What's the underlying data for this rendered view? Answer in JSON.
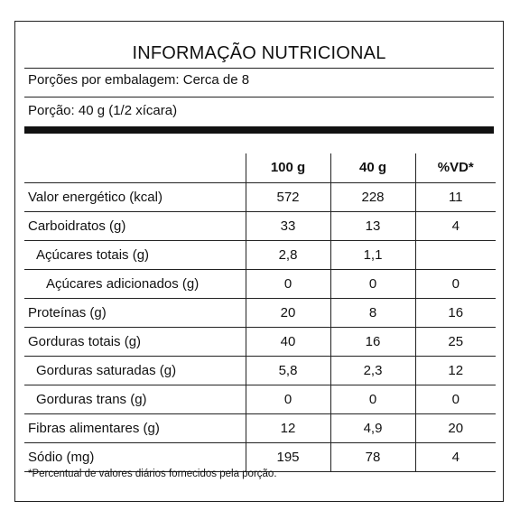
{
  "title": "INFORMAÇÃO NUTRICIONAL",
  "servings_per_package": "Porções por embalagem: Cerca de 8",
  "serving_size": "Porção: 40 g (1/2 xícara)",
  "columns": [
    "",
    "100 g",
    "40 g",
    "%VD*"
  ],
  "rows": [
    {
      "name": "Valor energético (kcal)",
      "indent": 0,
      "per100": "572",
      "per_portion": "228",
      "vd": "11"
    },
    {
      "name": "Carboidratos (g)",
      "indent": 0,
      "per100": "33",
      "per_portion": "13",
      "vd": "4"
    },
    {
      "name": "Açúcares totais (g)",
      "indent": 1,
      "per100": "2,8",
      "per_portion": "1,1",
      "vd": ""
    },
    {
      "name": "Açúcares adicionados (g)",
      "indent": 2,
      "per100": "0",
      "per_portion": "0",
      "vd": "0"
    },
    {
      "name": "Proteínas (g)",
      "indent": 0,
      "per100": "20",
      "per_portion": "8",
      "vd": "16"
    },
    {
      "name": "Gorduras totais (g)",
      "indent": 0,
      "per100": "40",
      "per_portion": "16",
      "vd": "25"
    },
    {
      "name": "Gorduras saturadas (g)",
      "indent": 1,
      "per100": "5,8",
      "per_portion": "2,3",
      "vd": "12"
    },
    {
      "name": "Gorduras trans (g)",
      "indent": 1,
      "per100": "0",
      "per_portion": "0",
      "vd": "0"
    },
    {
      "name": "Fibras alimentares (g)",
      "indent": 0,
      "per100": "12",
      "per_portion": "4,9",
      "vd": "20"
    },
    {
      "name": "Sódio (mg)",
      "indent": 0,
      "per100": "195",
      "per_portion": "78",
      "vd": "4"
    }
  ],
  "footnote": "*Percentual de valores diários fornecidos pela porção."
}
